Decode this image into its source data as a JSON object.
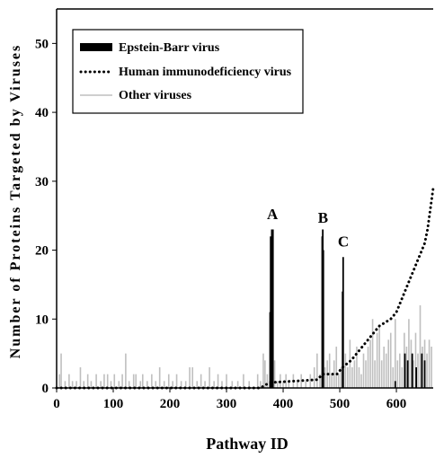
{
  "chart_data": {
    "type": "bar",
    "xlabel": "Pathway ID",
    "ylabel": "Number of Proteins Targeted by Viruses",
    "xlim": [
      0,
      665
    ],
    "ylim": [
      0,
      55
    ],
    "xticks": [
      0,
      100,
      200,
      300,
      400,
      500,
      600
    ],
    "yticks": [
      0,
      10,
      20,
      30,
      40,
      50
    ],
    "legend_position": "top-left",
    "series": [
      {
        "name": "Epstein-Barr virus",
        "style": "black bars",
        "color": "#000000",
        "points": [
          [
            377,
            11
          ],
          [
            378,
            22
          ],
          [
            380,
            23
          ],
          [
            381,
            22
          ],
          [
            382,
            23
          ],
          [
            469,
            22
          ],
          [
            470,
            23
          ],
          [
            471,
            20
          ],
          [
            505,
            14
          ],
          [
            506,
            19
          ],
          [
            598,
            1
          ],
          [
            615,
            5
          ],
          [
            620,
            4
          ],
          [
            628,
            5
          ],
          [
            635,
            3
          ],
          [
            645,
            5
          ],
          [
            650,
            4
          ]
        ]
      },
      {
        "name": "Human immunodeficiency virus",
        "style": "dotted line",
        "color": "#000000",
        "x": [
          0,
          360,
          370,
          380,
          420,
          460,
          470,
          495,
          505,
          520,
          530,
          540,
          550,
          560,
          570,
          580,
          590,
          600,
          610,
          615,
          620,
          630,
          640,
          650,
          655,
          660,
          665
        ],
        "y": [
          0,
          0,
          0.5,
          0.8,
          1,
          1.2,
          2,
          2,
          3,
          4,
          5,
          6,
          7,
          8,
          9,
          9.5,
          10,
          11,
          13,
          14,
          15,
          17,
          19,
          21,
          23,
          26,
          29
        ]
      },
      {
        "name": "Other viruses",
        "style": "grey bars",
        "color": "#bfbfbf",
        "points": [
          [
            5,
            2
          ],
          [
            8,
            5
          ],
          [
            15,
            1
          ],
          [
            22,
            2
          ],
          [
            28,
            1
          ],
          [
            35,
            1
          ],
          [
            42,
            3
          ],
          [
            48,
            1
          ],
          [
            55,
            2
          ],
          [
            61,
            1
          ],
          [
            70,
            2
          ],
          [
            78,
            1
          ],
          [
            84,
            2
          ],
          [
            90,
            2
          ],
          [
            96,
            1
          ],
          [
            102,
            2
          ],
          [
            110,
            1
          ],
          [
            116,
            2
          ],
          [
            122,
            5
          ],
          [
            128,
            1
          ],
          [
            136,
            2
          ],
          [
            140,
            2
          ],
          [
            148,
            1
          ],
          [
            152,
            2
          ],
          [
            160,
            1
          ],
          [
            168,
            2
          ],
          [
            175,
            1
          ],
          [
            182,
            3
          ],
          [
            190,
            1
          ],
          [
            198,
            2
          ],
          [
            205,
            1
          ],
          [
            212,
            2
          ],
          [
            220,
            1
          ],
          [
            228,
            1
          ],
          [
            235,
            3
          ],
          [
            240,
            3
          ],
          [
            248,
            1
          ],
          [
            255,
            2
          ],
          [
            262,
            1
          ],
          [
            270,
            3
          ],
          [
            278,
            1
          ],
          [
            285,
            2
          ],
          [
            292,
            1
          ],
          [
            300,
            2
          ],
          [
            310,
            1
          ],
          [
            320,
            1
          ],
          [
            330,
            2
          ],
          [
            340,
            1
          ],
          [
            355,
            2
          ],
          [
            360,
            1
          ],
          [
            365,
            5
          ],
          [
            368,
            4
          ],
          [
            372,
            2
          ],
          [
            376,
            1
          ],
          [
            385,
            4
          ],
          [
            390,
            1
          ],
          [
            395,
            2
          ],
          [
            400,
            1
          ],
          [
            405,
            2
          ],
          [
            410,
            1
          ],
          [
            418,
            2
          ],
          [
            425,
            1
          ],
          [
            432,
            2
          ],
          [
            440,
            1
          ],
          [
            448,
            2
          ],
          [
            455,
            3
          ],
          [
            460,
            5
          ],
          [
            465,
            2
          ],
          [
            474,
            3
          ],
          [
            478,
            4
          ],
          [
            482,
            5
          ],
          [
            486,
            2
          ],
          [
            490,
            4
          ],
          [
            494,
            6
          ],
          [
            498,
            2
          ],
          [
            502,
            3
          ],
          [
            510,
            5
          ],
          [
            514,
            3
          ],
          [
            518,
            7
          ],
          [
            522,
            3
          ],
          [
            526,
            4
          ],
          [
            530,
            6
          ],
          [
            534,
            3
          ],
          [
            538,
            2
          ],
          [
            542,
            5
          ],
          [
            546,
            4
          ],
          [
            550,
            6
          ],
          [
            554,
            7
          ],
          [
            558,
            10
          ],
          [
            562,
            4
          ],
          [
            566,
            8
          ],
          [
            570,
            9
          ],
          [
            574,
            4
          ],
          [
            578,
            6
          ],
          [
            582,
            5
          ],
          [
            586,
            7
          ],
          [
            590,
            8
          ],
          [
            594,
            3
          ],
          [
            598,
            10
          ],
          [
            602,
            4
          ],
          [
            606,
            5
          ],
          [
            610,
            3
          ],
          [
            614,
            8
          ],
          [
            618,
            6
          ],
          [
            622,
            10
          ],
          [
            626,
            7
          ],
          [
            630,
            4
          ],
          [
            634,
            8
          ],
          [
            638,
            5
          ],
          [
            642,
            12
          ],
          [
            646,
            6
          ],
          [
            650,
            7
          ],
          [
            654,
            5
          ],
          [
            658,
            7
          ],
          [
            662,
            6
          ]
        ]
      }
    ],
    "annotations": [
      {
        "text": "A",
        "x": 381,
        "y": 24.5
      },
      {
        "text": "B",
        "x": 471,
        "y": 24
      },
      {
        "text": "C",
        "x": 506,
        "y": 20.5
      }
    ]
  }
}
